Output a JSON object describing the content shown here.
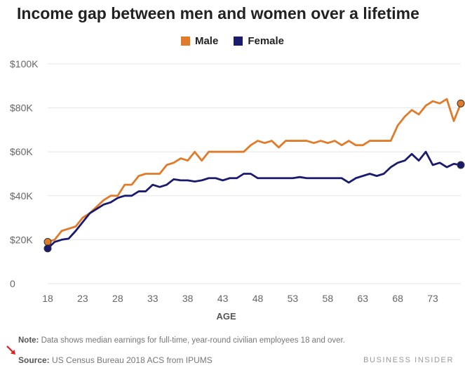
{
  "title": "Income gap between men and women over a lifetime",
  "note": {
    "label": "Note:",
    "text": " Data shows median earnings for full-time, year-round civilian employees 18 and over."
  },
  "source": {
    "label": "Source:",
    "text": " US Census Bureau 2018 ACS from IPUMS"
  },
  "brand": "BUSINESS INSIDER",
  "colors": {
    "male": "#e07b2a",
    "female": "#1a1a6e",
    "grid": "#e6e6e6"
  },
  "chart_data": {
    "type": "line",
    "xlabel": "AGE",
    "ylabel": "",
    "xlim": [
      18,
      77
    ],
    "ylim": [
      0,
      100000
    ],
    "x_ticks": [
      18,
      23,
      28,
      33,
      38,
      43,
      48,
      53,
      58,
      63,
      68,
      73
    ],
    "y_ticks": [
      {
        "value": 0,
        "label": "0"
      },
      {
        "value": 20000,
        "label": "$20K"
      },
      {
        "value": 40000,
        "label": "$40K"
      },
      {
        "value": 60000,
        "label": "$60K"
      },
      {
        "value": 80000,
        "label": "$80K"
      },
      {
        "value": 100000,
        "label": "$100K"
      }
    ],
    "grid": true,
    "legend": "top-center",
    "x": [
      18,
      19,
      20,
      21,
      22,
      23,
      24,
      25,
      26,
      27,
      28,
      29,
      30,
      31,
      32,
      33,
      34,
      35,
      36,
      37,
      38,
      39,
      40,
      41,
      42,
      43,
      44,
      45,
      46,
      47,
      48,
      49,
      50,
      51,
      52,
      53,
      54,
      55,
      56,
      57,
      58,
      59,
      60,
      61,
      62,
      63,
      64,
      65,
      66,
      67,
      68,
      69,
      70,
      71,
      72,
      73,
      74,
      75,
      76,
      77
    ],
    "series": [
      {
        "name": "Male",
        "values": [
          19000,
          20000,
          24000,
          25000,
          26000,
          30000,
          32000,
          35000,
          38000,
          40000,
          40000,
          45000,
          45000,
          49000,
          50000,
          50000,
          50000,
          54000,
          55000,
          57000,
          56000,
          60000,
          56000,
          60000,
          60000,
          60000,
          60000,
          60000,
          60000,
          63000,
          65000,
          64000,
          65000,
          62000,
          65000,
          65000,
          65000,
          65000,
          64000,
          65000,
          64000,
          65000,
          63000,
          65000,
          63000,
          63000,
          65000,
          65000,
          65000,
          65000,
          72000,
          76000,
          79000,
          77000,
          81000,
          83000,
          82000,
          84000,
          74000,
          82000
        ]
      },
      {
        "name": "Female",
        "values": [
          16000,
          19000,
          20000,
          20500,
          24000,
          28000,
          32000,
          34000,
          36000,
          37000,
          39000,
          40000,
          40000,
          42000,
          42000,
          45000,
          44000,
          45000,
          47500,
          47000,
          47000,
          46500,
          47000,
          48000,
          48000,
          47000,
          48000,
          48000,
          50000,
          50000,
          48000,
          48000,
          48000,
          48000,
          48000,
          48000,
          48500,
          48000,
          48000,
          48000,
          48000,
          48000,
          48000,
          46000,
          48000,
          49000,
          50000,
          49000,
          50000,
          53000,
          55000,
          56000,
          59000,
          56000,
          60000,
          54000,
          55000,
          53000,
          54500,
          54000
        ]
      }
    ]
  }
}
